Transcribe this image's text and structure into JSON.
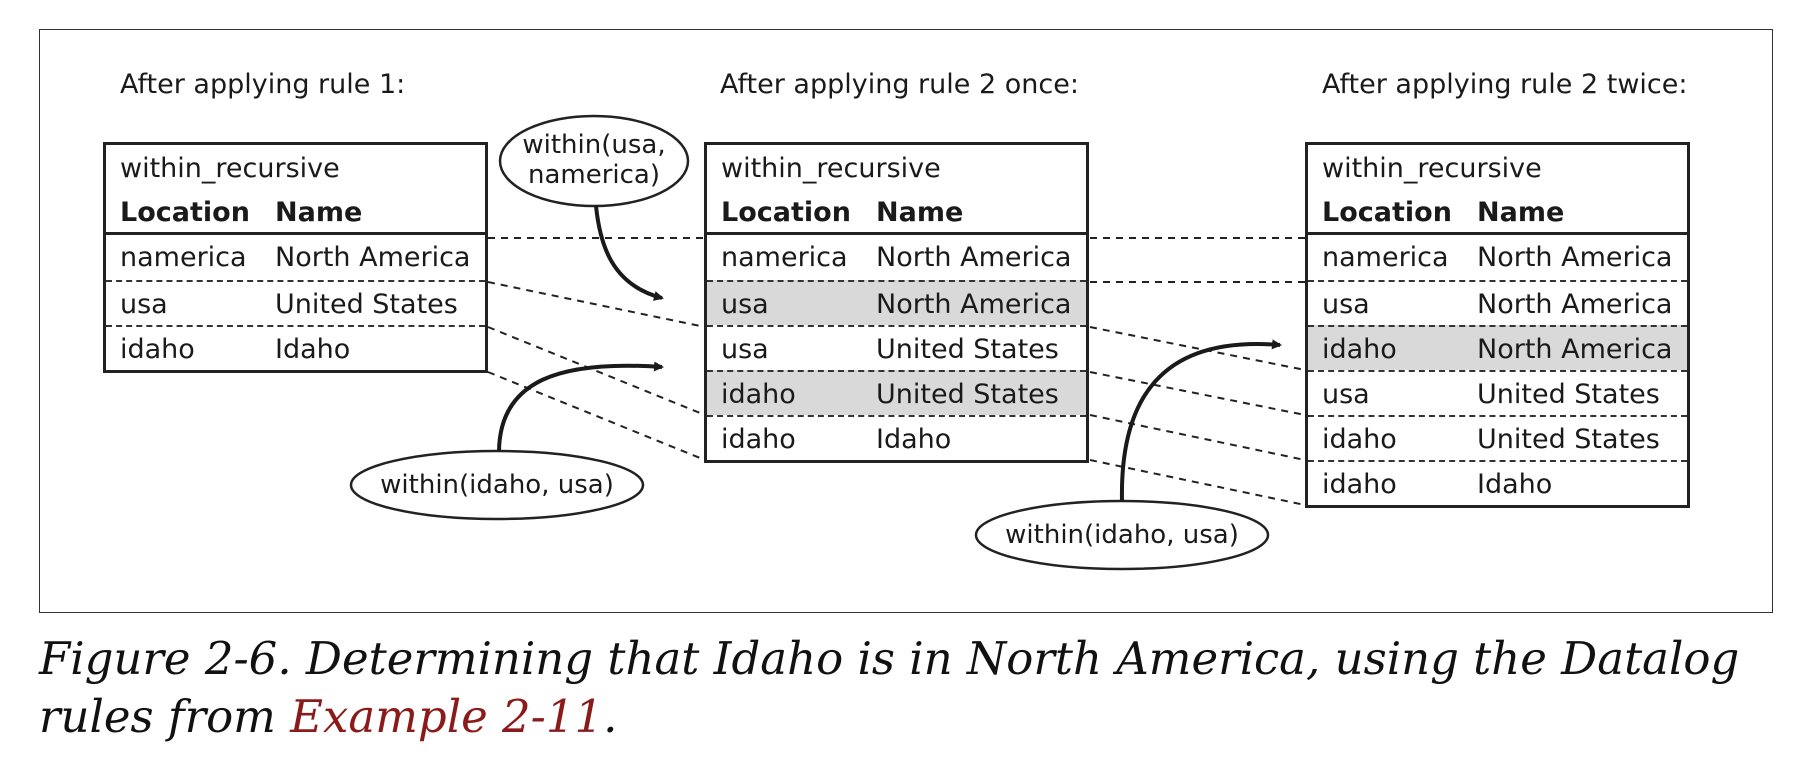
{
  "panels": [
    {
      "heading": "After applying rule 1:",
      "table_name": "within_recursive",
      "columns": [
        "Location",
        "Name"
      ],
      "rows": [
        {
          "location": "namerica",
          "name": "North America",
          "highlight": false
        },
        {
          "location": "usa",
          "name": "United States",
          "highlight": false
        },
        {
          "location": "idaho",
          "name": "Idaho",
          "highlight": false
        }
      ]
    },
    {
      "heading": "After applying rule 2 once:",
      "table_name": "within_recursive",
      "columns": [
        "Location",
        "Name"
      ],
      "rows": [
        {
          "location": "namerica",
          "name": "North America",
          "highlight": false
        },
        {
          "location": "usa",
          "name": "North America",
          "highlight": true
        },
        {
          "location": "usa",
          "name": "United States",
          "highlight": false
        },
        {
          "location": "idaho",
          "name": "United States",
          "highlight": true
        },
        {
          "location": "idaho",
          "name": "Idaho",
          "highlight": false
        }
      ]
    },
    {
      "heading": "After applying rule 2 twice:",
      "table_name": "within_recursive",
      "columns": [
        "Location",
        "Name"
      ],
      "rows": [
        {
          "location": "namerica",
          "name": "North America",
          "highlight": false
        },
        {
          "location": "usa",
          "name": "North America",
          "highlight": false
        },
        {
          "location": "idaho",
          "name": "North America",
          "highlight": true
        },
        {
          "location": "usa",
          "name": "United States",
          "highlight": false
        },
        {
          "location": "idaho",
          "name": "United States",
          "highlight": false
        },
        {
          "location": "idaho",
          "name": "Idaho",
          "highlight": false
        }
      ]
    }
  ],
  "annotations": {
    "within_usa_namerica": [
      "within(usa,",
      "namerica)"
    ],
    "within_idaho_usa_1": "within(idaho, usa)",
    "within_idaho_usa_2": "within(idaho, usa)"
  },
  "caption": {
    "text": "Figure 2-6. Determining that Idaho is in North America, using the Datalog rules from ",
    "link": "Example 2-11",
    "end": "."
  },
  "colors": {
    "highlight": "#d9d9d9",
    "link": "#8b1a1a"
  }
}
